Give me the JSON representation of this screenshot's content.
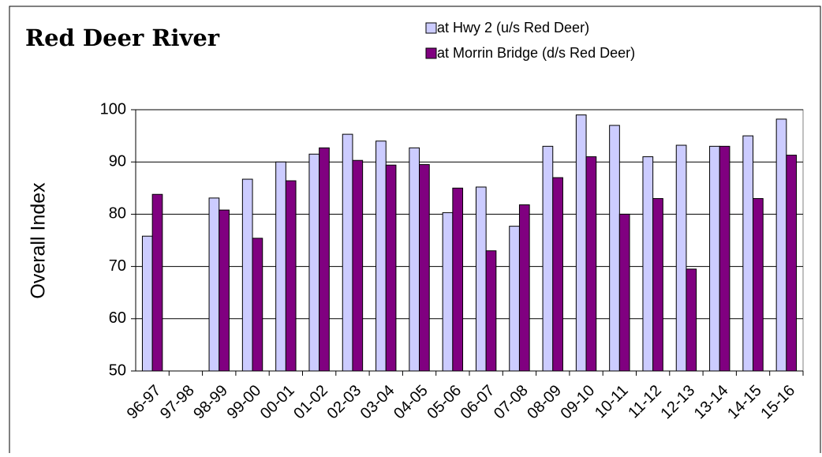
{
  "chart_data": {
    "type": "bar",
    "title": "Red Deer River",
    "y_label": "Overall Index",
    "categories": [
      "96-97",
      "97-98",
      "98-99",
      "99-00",
      "00-01",
      "01-02",
      "02-03",
      "03-04",
      "04-05",
      "05-06",
      "06-07",
      "07-08",
      "08-09",
      "09-10",
      "10-11",
      "11-12",
      "12-13",
      "13-14",
      "14-15",
      "15-16"
    ],
    "series": [
      {
        "name": "at Hwy 2 (u/s Red Deer)",
        "color": "#ccccff",
        "values": [
          75.8,
          null,
          83.1,
          86.7,
          90,
          91.5,
          95.3,
          94,
          92.7,
          80.3,
          85.2,
          77.7,
          93,
          99,
          97,
          91,
          93.2,
          93,
          95,
          98.2
        ]
      },
      {
        "name": "at Morrin Bridge (d/s Red Deer)",
        "color": "#800080",
        "values": [
          83.8,
          null,
          80.8,
          75.4,
          86.4,
          92.7,
          90.3,
          89.4,
          89.5,
          85,
          73,
          81.8,
          87,
          91,
          80,
          83,
          69.5,
          93,
          83,
          91.3
        ]
      }
    ],
    "ylim": [
      50,
      100
    ],
    "yticks": [
      50,
      60,
      70,
      80,
      90,
      100
    ],
    "grid": true,
    "legend": "top-right"
  }
}
